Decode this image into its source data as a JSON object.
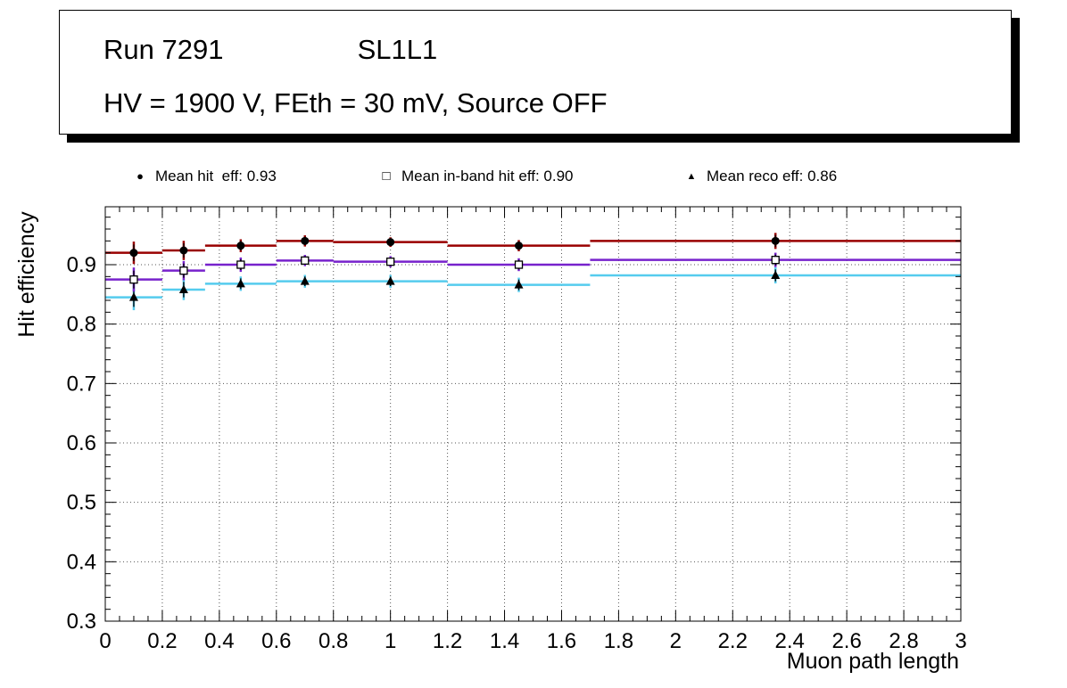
{
  "title_box": {
    "run": "Run 7291",
    "layer": "SL1L1",
    "conditions": "HV = 1900 V, FEth = 30 mV, Source OFF"
  },
  "legend": {
    "entries": [
      {
        "glyph": "●",
        "marker": "filled-circle",
        "label": "Mean hit  eff: 0.93"
      },
      {
        "glyph": "□",
        "marker": "open-square",
        "label": "Mean in-band hit eff: 0.90"
      },
      {
        "glyph": "▲",
        "marker": "filled-triangle",
        "label": "Mean reco eff: 0.86"
      }
    ]
  },
  "chart_data": {
    "type": "scatter",
    "title": "",
    "xlabel": "Muon path length",
    "ylabel": "Hit efficiency",
    "xlim": [
      0,
      3
    ],
    "ylim": [
      0.3,
      0.9975
    ],
    "grid": true,
    "legend_position": "top",
    "x_tick_values": [
      0,
      0.2,
      0.4,
      0.6,
      0.8,
      1,
      1.2,
      1.4,
      1.6,
      1.8,
      2,
      2.2,
      2.4,
      2.6,
      2.8,
      3
    ],
    "x_tick_labels": [
      "0",
      "0.2",
      "0.4",
      "0.6",
      "0.8",
      "1",
      "1.2",
      "1.4",
      "1.6",
      "1.8",
      "2",
      "2.2",
      "2.4",
      "2.6",
      "2.8",
      "3"
    ],
    "y_tick_values": [
      0.3,
      0.4,
      0.5,
      0.6,
      0.7,
      0.8,
      0.9
    ],
    "y_tick_labels": [
      "0.3",
      "0.4",
      "0.5",
      "0.6",
      "0.7",
      "0.8",
      "0.9"
    ],
    "bin_edges": [
      0,
      0.2,
      0.35,
      0.6,
      0.8,
      1.2,
      1.7,
      3.0
    ],
    "bin_centers": [
      0.1,
      0.275,
      0.475,
      0.7,
      1.0,
      1.45,
      2.35
    ],
    "series": [
      {
        "name": "Mean reco eff",
        "mean": 0.86,
        "marker": "filled-triangle",
        "marker_color": "#000000",
        "line_color": "#55ccee",
        "values": [
          0.845,
          0.858,
          0.868,
          0.872,
          0.872,
          0.866,
          0.882
        ],
        "errors": [
          0.016,
          0.013,
          0.009,
          0.008,
          0.008,
          0.009,
          0.01
        ]
      },
      {
        "name": "Mean in-band hit eff",
        "mean": 0.9,
        "marker": "open-square",
        "marker_color": "#000000",
        "line_color": "#7722cc",
        "values": [
          0.875,
          0.89,
          0.9,
          0.907,
          0.905,
          0.9,
          0.908
        ],
        "errors": [
          0.015,
          0.012,
          0.009,
          0.007,
          0.007,
          0.008,
          0.009
        ]
      },
      {
        "name": "Mean hit eff",
        "mean": 0.93,
        "marker": "filled-circle",
        "marker_color": "#000000",
        "line_color": "#990000",
        "values": [
          0.92,
          0.924,
          0.932,
          0.94,
          0.938,
          0.932,
          0.94
        ],
        "errors": [
          0.014,
          0.012,
          0.008,
          0.007,
          0.006,
          0.007,
          0.01
        ]
      }
    ]
  }
}
